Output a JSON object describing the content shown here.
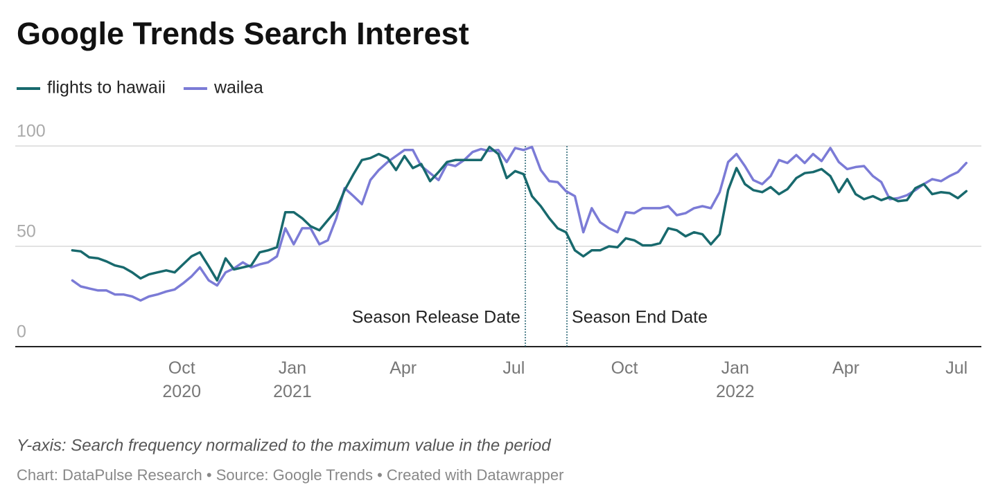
{
  "chart_data": {
    "type": "line",
    "title": "Google Trends Search Interest",
    "subtitle_note": "Y-axis: Search frequency normalized to the maximum value in the period",
    "source": "Chart: DataPulse Research • Source: Google Trends  • Created with Datawrapper",
    "x": [
      2020.503,
      2020.522,
      2020.541,
      2020.561,
      2020.58,
      2020.599,
      2020.618,
      2020.638,
      2020.657,
      2020.676,
      2020.695,
      2020.715,
      2020.734,
      2020.753,
      2020.772,
      2020.791,
      2020.811,
      2020.83,
      2020.849,
      2020.868,
      2020.888,
      2020.907,
      2020.926,
      2020.945,
      2020.965,
      2020.984,
      2021.003,
      2021.022,
      2021.041,
      2021.061,
      2021.08,
      2021.099,
      2021.118,
      2021.138,
      2021.157,
      2021.176,
      2021.195,
      2021.215,
      2021.234,
      2021.253,
      2021.272,
      2021.291,
      2021.311,
      2021.33,
      2021.349,
      2021.368,
      2021.388,
      2021.407,
      2021.426,
      2021.445,
      2021.465,
      2021.484,
      2021.503,
      2021.522,
      2021.541,
      2021.561,
      2021.58,
      2021.599,
      2021.618,
      2021.638,
      2021.657,
      2021.676,
      2021.695,
      2021.715,
      2021.734,
      2021.753,
      2021.772,
      2021.791,
      2021.811,
      2021.83,
      2021.849,
      2021.868,
      2021.888,
      2021.907,
      2021.926,
      2021.945,
      2021.965,
      2021.984,
      2022.003,
      2022.022,
      2022.041,
      2022.061,
      2022.08,
      2022.099,
      2022.118,
      2022.138,
      2022.157,
      2022.176,
      2022.195,
      2022.215,
      2022.234,
      2022.253,
      2022.272,
      2022.291,
      2022.311,
      2022.33,
      2022.349,
      2022.368,
      2022.388,
      2022.407,
      2022.426,
      2022.445,
      2022.465,
      2022.484,
      2022.503,
      2022.522
    ],
    "series": [
      {
        "name": "flights to hawaii",
        "color": "#18696d",
        "values": [
          48,
          47.5,
          44.5,
          44,
          42.5,
          40.5,
          39.5,
          37,
          34,
          36,
          37,
          38,
          37,
          41,
          45,
          47,
          40,
          33,
          44,
          38.5,
          39.5,
          40.5,
          47,
          48,
          49.5,
          67,
          67,
          64,
          60,
          58,
          63,
          68,
          78,
          86,
          93,
          94,
          96,
          94,
          88,
          95,
          89,
          91,
          82.5,
          87,
          92,
          93,
          93,
          93,
          93,
          99.5,
          96,
          84,
          87.5,
          86,
          75,
          70,
          64,
          59,
          57,
          48,
          45,
          48,
          48,
          50,
          49.5,
          54,
          53,
          50.5,
          50.5,
          51.5,
          59,
          58,
          55,
          57,
          56,
          51,
          56,
          78,
          89,
          81,
          78,
          77,
          79.5,
          76,
          78.5,
          84,
          86.5,
          87,
          88.5,
          85,
          77,
          83.5,
          76,
          73.5,
          75,
          73,
          74.5,
          72.5,
          73,
          79,
          81,
          76,
          77,
          76.5,
          74,
          77.5
        ]
      },
      {
        "name": "wailea",
        "color": "#7b7bd6",
        "values": [
          33,
          30,
          29,
          28,
          28,
          26,
          26,
          25,
          23,
          25,
          26,
          27.5,
          28.5,
          31.5,
          35,
          39.5,
          33,
          30.5,
          37,
          39,
          42,
          39.5,
          41,
          42,
          45,
          59,
          51,
          59,
          59,
          51,
          53,
          64,
          79,
          75,
          71,
          83,
          88,
          92,
          95,
          98,
          98,
          90,
          86.5,
          83,
          91,
          90,
          93,
          97,
          98.5,
          97.5,
          98,
          92,
          99,
          98,
          99.5,
          88,
          82.5,
          82,
          77.5,
          75,
          57,
          69,
          62,
          59,
          57,
          67,
          66.5,
          69,
          69,
          69,
          70,
          65.5,
          66.5,
          69,
          70,
          69,
          77,
          92,
          96,
          90,
          83,
          81,
          85,
          93,
          91.5,
          95.5,
          91.5,
          96,
          92.5,
          99,
          92,
          88.5,
          89.5,
          90,
          85,
          82,
          73.5,
          74,
          75.5,
          78,
          81,
          83.5,
          82.5,
          85,
          87,
          91.5
        ]
      }
    ],
    "xlim": [
      2020.374,
      2022.556
    ],
    "xticks": [
      {
        "value": 2020.75,
        "label": "Oct\n2020"
      },
      {
        "value": 2021,
        "label": "Jan\n2021"
      },
      {
        "value": 2021.25,
        "label": "Apr"
      },
      {
        "value": 2021.5,
        "label": "Jul"
      },
      {
        "value": 2021.75,
        "label": "Oct"
      },
      {
        "value": 2022,
        "label": "Jan\n2022"
      },
      {
        "value": 2022.25,
        "label": "Apr"
      },
      {
        "value": 2022.5,
        "label": "Jul"
      }
    ],
    "ylim": [
      0,
      100
    ],
    "yticks": [
      0,
      50,
      100
    ],
    "grid": true,
    "legend": "top-left",
    "markers": [
      {
        "x": 2021.526,
        "label": "Season Release Date"
      },
      {
        "x": 2021.62,
        "label": "Season End Date"
      }
    ]
  }
}
